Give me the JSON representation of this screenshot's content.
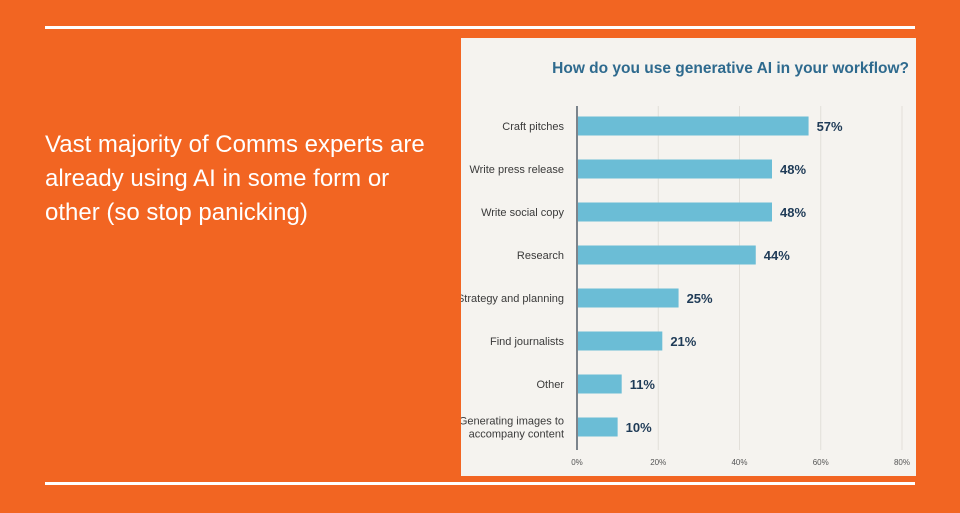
{
  "slide": {
    "headline": "Vast majority of Comms experts are already using AI in some form or other (so stop panicking)"
  },
  "colors": {
    "background": "#f26522",
    "panel": "#f5f3ef",
    "bar": "#6bbdd6",
    "title": "#2e6a8e",
    "value_text": "#1f3b57"
  },
  "chart_data": {
    "type": "bar",
    "orientation": "horizontal",
    "title": "How do you use generative AI in your workflow?",
    "categories": [
      [
        "Craft pitches"
      ],
      [
        "Write press release"
      ],
      [
        "Write social copy"
      ],
      [
        "Research"
      ],
      [
        "Strategy and planning"
      ],
      [
        "Find journalists"
      ],
      [
        "Other"
      ],
      [
        "Generating images to",
        "accompany content"
      ]
    ],
    "values": [
      57,
      48,
      48,
      44,
      25,
      21,
      11,
      10
    ],
    "value_labels": [
      "57%",
      "48%",
      "48%",
      "44%",
      "25%",
      "21%",
      "11%",
      "10%"
    ],
    "xlim": [
      0,
      80
    ],
    "xticks": [
      0,
      20,
      40,
      60,
      80
    ],
    "xtick_labels": [
      "0%",
      "20%",
      "40%",
      "60%",
      "80%"
    ],
    "grid": true,
    "xlabel": "",
    "ylabel": ""
  }
}
